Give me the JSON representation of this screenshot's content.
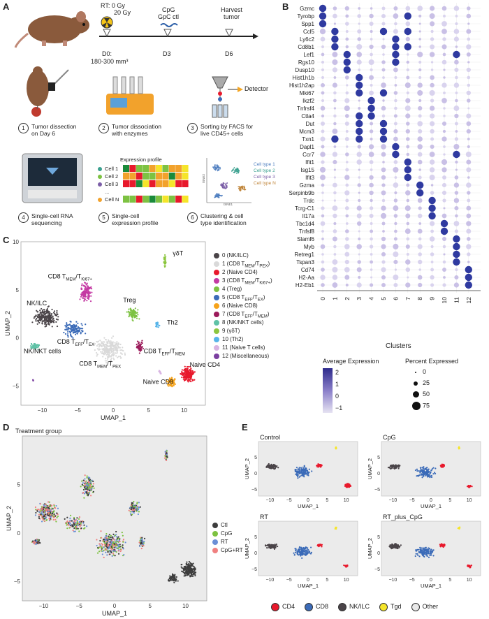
{
  "panels": {
    "A": "A",
    "B": "B",
    "C": "C",
    "D": "D",
    "E": "E"
  },
  "timeline": {
    "rt": "RT: 0 Gy",
    "rt2": "20 Gy",
    "cpg": "CpG",
    "gpc": "GpC ctl",
    "harvest": "Harvest",
    "harvest2": "tumor",
    "d0": "D0:",
    "d0size": "180-300 mm³",
    "d3": "D3",
    "d6": "D6"
  },
  "steps": [
    {
      "num": "1",
      "line1": "Tumor dissection",
      "line2": "on Day 6"
    },
    {
      "num": "2",
      "line1": "Tumor dissociation",
      "line2": "with enzymes"
    },
    {
      "num": "3",
      "line1": "Sorting by FACS for",
      "line2": "live CD45+ cells"
    },
    {
      "num": "4",
      "line1": "Single-cell RNA",
      "line2": "sequencing"
    },
    {
      "num": "5",
      "line1": "Single-cell",
      "line2": "expression profile"
    },
    {
      "num": "6",
      "line1": "Clustering & cell",
      "line2": "type identification"
    }
  ],
  "detector": "Detector",
  "expression_profile": {
    "title": "Expression profile",
    "cells": [
      "Cell 1",
      "Cell 2",
      "Cell 3",
      "...",
      "Cell N"
    ],
    "dots": "..."
  },
  "mini_umap": {
    "types": [
      "Cell type 1",
      "Cell type 2",
      "Cell type 3",
      "Cell type N"
    ],
    "xlab": "tSNE1",
    "ylab": "tSNE2",
    "type_colors": [
      "#4f7fc0",
      "#3aa08f",
      "#7b5ea7",
      "#c0853a"
    ]
  },
  "chart_data": [
    {
      "type": "scatter",
      "panel": "B",
      "subtype": "dotplot",
      "xlabel": "Clusters",
      "categories": [
        "0",
        "1",
        "2",
        "3",
        "4",
        "5",
        "6",
        "7",
        "8",
        "9",
        "10",
        "11",
        "12"
      ],
      "genes": [
        "Gzmc",
        "Tyrobp",
        "Spp1",
        "Ccl5",
        "Ly6c2",
        "Cd8b1",
        "Lef1",
        "Rgs10",
        "Dusp10",
        "Hist1h1b",
        "Hist1h2ap",
        "Mki67",
        "Ikzf2",
        "Tnfrsf4",
        "Ctla4",
        "Dut",
        "Mcm3",
        "Txn1",
        "Dapl1",
        "Ccr7",
        "Ifit1",
        "Isg15",
        "Ifit3",
        "Gzma",
        "Serpinb9b",
        "Trdc",
        "Tcrg-C1",
        "Il17a",
        "Tbc1d4",
        "Tnfsf8",
        "Slamf6",
        "Myb",
        "Retreg1",
        "Tspan3",
        "Cd74",
        "H2-Aa",
        "H2-Eb1"
      ],
      "high": [
        [
          0
        ],
        [
          0,
          7
        ],
        [
          0
        ],
        [
          1,
          5,
          7
        ],
        [
          1,
          6
        ],
        [
          1,
          6,
          7
        ],
        [
          2,
          6,
          11
        ],
        [
          2,
          6
        ],
        [
          2
        ],
        [
          3
        ],
        [
          3
        ],
        [
          3,
          5
        ],
        [
          4
        ],
        [
          4
        ],
        [
          3,
          4
        ],
        [
          3,
          5
        ],
        [
          3,
          5
        ],
        [
          1,
          3,
          5
        ],
        [
          6
        ],
        [
          6,
          11
        ],
        [
          7
        ],
        [
          7
        ],
        [
          7
        ],
        [
          8
        ],
        [
          8
        ],
        [
          9
        ],
        [
          9
        ],
        [
          9
        ],
        [
          10
        ],
        [
          10
        ],
        [
          11
        ],
        [
          11
        ],
        [
          11
        ],
        [
          11
        ],
        [
          12
        ],
        [
          12
        ],
        [
          12
        ]
      ],
      "legend_expr": {
        "title": "Average Expression",
        "ticks": [
          "2",
          "1",
          "0",
          "−1"
        ]
      },
      "legend_pct": {
        "title": "Percent Expressed",
        "ticks": [
          "0",
          "25",
          "50",
          "75"
        ]
      }
    },
    {
      "type": "scatter",
      "panel": "C",
      "xlabel": "UMAP_1",
      "ylabel": "UMAP_2",
      "xlim": [
        -13,
        13
      ],
      "ylim": [
        -7,
        10
      ],
      "xticks": [
        "−10",
        "−5",
        "0",
        "5",
        "10"
      ],
      "yticks": [
        "10",
        "5",
        "0",
        "−5"
      ],
      "clusters": [
        {
          "id": "0",
          "label": "0 (NK/ILC)",
          "color": "#4a4448",
          "center": [
            -9.5,
            2.2
          ]
        },
        {
          "id": "1",
          "label": "1 (CD8 T",
          "sub1": "MEM",
          "mid": "/T",
          "sub2": "PEX",
          "end": ")",
          "color": "#d9d9d9",
          "center": [
            -0.5,
            -1.2
          ]
        },
        {
          "id": "2",
          "label": "2 (Naive CD4)",
          "color": "#e8192c",
          "center": [
            10.5,
            -3.8
          ]
        },
        {
          "id": "3",
          "label": "3 (CD8 T",
          "sub1": "MEM",
          "mid": "/T",
          "sub2": "Ki67+",
          "end": ")",
          "color": "#c43aa3",
          "center": [
            -3.8,
            4.8
          ]
        },
        {
          "id": "4",
          "label": "4 (Treg)",
          "color": "#7dc242",
          "center": [
            2.8,
            2.5
          ]
        },
        {
          "id": "5",
          "label": "5 (CD8 T",
          "sub1": "EFF",
          "mid": "/T",
          "sub2": "EX",
          "end": ")",
          "color": "#3b6bb8",
          "center": [
            -5.5,
            0.9
          ]
        },
        {
          "id": "6",
          "label": "6 (Naive CD8)",
          "color": "#f6a31b",
          "center": [
            8.2,
            -4.6
          ]
        },
        {
          "id": "7",
          "label": "7 (CD8 T",
          "sub1": "EFF",
          "mid": "/T",
          "sub2": "MEM",
          "end": ")",
          "color": "#9b1a5a",
          "center": [
            3.8,
            -1.0
          ]
        },
        {
          "id": "8",
          "label": "8 (NK/NKT cells)",
          "color": "#5fc2a6",
          "center": [
            -11.0,
            -0.9
          ]
        },
        {
          "id": "9",
          "label": "9 (γδT)",
          "color": "#8cc63f",
          "center": [
            7.3,
            8.0
          ]
        },
        {
          "id": "10",
          "label": "10 (Th2)",
          "color": "#56b4e9",
          "center": [
            6.2,
            1.4
          ]
        },
        {
          "id": "11",
          "label": "11 (Naive T cells)",
          "color": "#d8b4e2",
          "center": [
            6.6,
            -3.6
          ]
        },
        {
          "id": "12",
          "label": "12 (Miscellaneous)",
          "color": "#7b3fa0",
          "center": [
            -11.3,
            -4.4
          ]
        }
      ],
      "annotations": [
        {
          "text": "γδT",
          "at": [
            8.4,
            8.6
          ]
        },
        {
          "text": "Treg",
          "at": [
            1.4,
            3.7
          ]
        },
        {
          "text": "Th2",
          "at": [
            7.6,
            1.4
          ]
        },
        {
          "text": "NK/ILC",
          "at": [
            -12.2,
            3.4
          ]
        },
        {
          "text": "NK/NKT cells",
          "at": [
            -12.6,
            -1.6
          ]
        },
        {
          "text": "Naive CD4",
          "at": [
            10.8,
            -3.0
          ]
        },
        {
          "text": "Naive CD8",
          "at": [
            4.2,
            -4.8
          ]
        }
      ],
      "rich_annotations": [
        {
          "pre": "CD8 T",
          "s1": "MEM",
          "mid": "/T",
          "s2": "Ki67+",
          "at": [
            -9.2,
            6.2
          ]
        },
        {
          "pre": "CD8 T",
          "s1": "EFF",
          "mid": "/T",
          "s2": "EX",
          "at": [
            -7.9,
            -0.6
          ]
        },
        {
          "pre": "CD8 T",
          "s1": "MEM",
          "mid": "/T",
          "s2": "PEX",
          "at": [
            -4.8,
            -2.9
          ]
        },
        {
          "pre": "CD8 T",
          "s1": "EFF",
          "mid": "/T",
          "s2": "MEM",
          "at": [
            4.3,
            -1.6
          ]
        }
      ]
    },
    {
      "type": "scatter",
      "panel": "D",
      "title": "Treatment group",
      "xlabel": "UMAP_1",
      "ylabel": "UMAP_2",
      "xlim": [
        -13,
        13
      ],
      "ylim": [
        -7,
        10
      ],
      "xticks": [
        "−10",
        "−5",
        "0",
        "5",
        "10"
      ],
      "yticks": [
        "5",
        "0",
        "−5"
      ],
      "series": [
        {
          "name": "Ctl",
          "color": "#3d3d3d"
        },
        {
          "name": "CpG",
          "color": "#7dc242"
        },
        {
          "name": "RT",
          "color": "#6b8fd6"
        },
        {
          "name": "CpG+RT",
          "color": "#f08080"
        }
      ]
    },
    {
      "type": "scatter",
      "panel": "E",
      "xlabel": "UMAP_1",
      "ylabel": "UMAP_2",
      "xticks": [
        "−10",
        "−5",
        "0",
        "5",
        "10"
      ],
      "yticks": [
        "5",
        "0",
        "−5"
      ],
      "facets": [
        "Control",
        "CpG",
        "RT",
        "RT_plus_CpG"
      ],
      "legend": [
        {
          "name": "CD4",
          "color": "#e8192c"
        },
        {
          "name": "CD8",
          "color": "#3b6bb8"
        },
        {
          "name": "NK/ILC",
          "color": "#4a4448"
        },
        {
          "name": "Tgd",
          "color": "#f5e52a"
        },
        {
          "name": "Other",
          "color": "#e8e8e8"
        }
      ]
    }
  ]
}
